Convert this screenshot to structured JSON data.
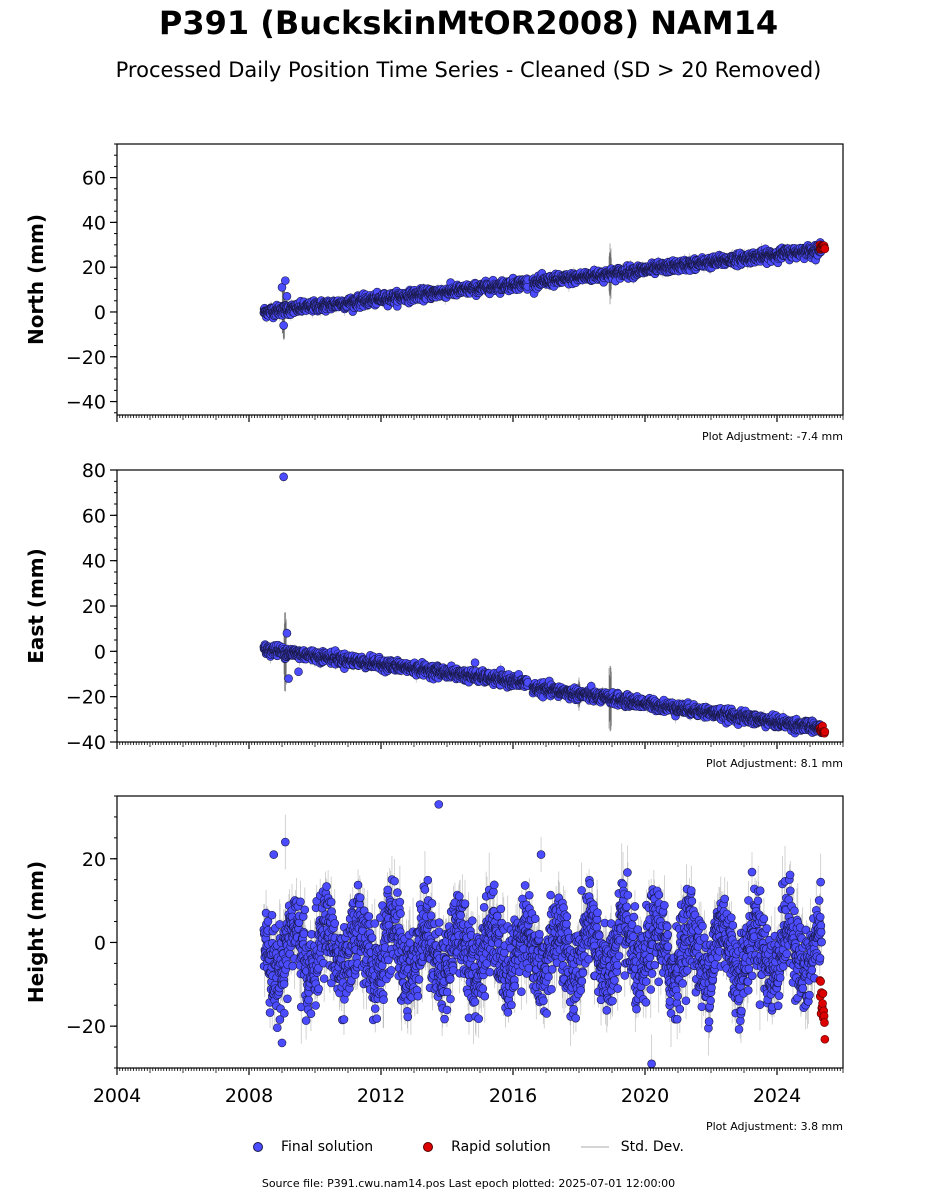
{
  "title": "P391 (BuckskinMtOR2008) NAM14",
  "subtitle": "Processed Daily Position Time Series - Cleaned (SD > 20 Removed)",
  "legend": {
    "final": "Final solution",
    "rapid": "Rapid solution",
    "std": "Std. Dev."
  },
  "footer": "Source file: P391.cwu.nam14.pos  Last epoch plotted: 2025-07-01 12:00:00",
  "colors": {
    "final": "#4b4bff",
    "rapid": "#dd0000",
    "std": "#9a9a9a",
    "marker_edge": "#1a1a4a"
  },
  "chart_data": [
    {
      "type": "scatter",
      "ylabel": "North (mm)",
      "note": "Plot Adjustment: -7.4 mm",
      "xlim": [
        2004,
        2026
      ],
      "ylim": [
        -46,
        75
      ],
      "yticks": [
        -40,
        -20,
        0,
        20,
        40,
        60
      ],
      "ytick_labels": [
        "−40",
        "−20",
        "0",
        "20",
        "40",
        "60"
      ],
      "grid": false,
      "legend": "below",
      "x_tick_labels_visible": false,
      "series": [
        {
          "name": "Final solution",
          "segments": [
            {
              "x": [
                2008.45,
                2016.45
              ],
              "y": [
                0,
                13
              ]
            },
            {
              "x": [
                2016.6,
                2025.35
              ],
              "y": [
                13,
                28
              ]
            }
          ],
          "scatter_sd": 1.2,
          "outliers": [
            [
              2009.0,
              11
            ],
            [
              2009.1,
              14
            ],
            [
              2009.05,
              -6
            ],
            [
              2009.15,
              7
            ]
          ]
        },
        {
          "name": "Rapid solution",
          "x": [
            2025.3,
            2025.45
          ],
          "y": [
            29,
            29
          ]
        }
      ],
      "std_spikes": [
        [
          2009.05,
          16
        ],
        [
          2018.95,
          14
        ]
      ]
    },
    {
      "type": "scatter",
      "ylabel": "East (mm)",
      "note": "Plot Adjustment: 8.1 mm",
      "xlim": [
        2004,
        2026
      ],
      "ylim": [
        -40,
        80
      ],
      "yticks": [
        -40,
        -20,
        0,
        20,
        40,
        60,
        80
      ],
      "ytick_labels": [
        "−40",
        "−20",
        "0",
        "20",
        "40",
        "60",
        "80"
      ],
      "grid": false,
      "legend": "below",
      "x_tick_labels_visible": false,
      "series": [
        {
          "name": "Final solution",
          "segments": [
            {
              "x": [
                2008.45,
                2016.45
              ],
              "y": [
                1,
                -14
              ]
            },
            {
              "x": [
                2016.6,
                2025.35
              ],
              "y": [
                -16,
                -34
              ]
            }
          ],
          "scatter_sd": 1.2,
          "outliers": [
            [
              2009.05,
              77
            ],
            [
              2009.2,
              -12
            ],
            [
              2009.15,
              8
            ],
            [
              2009.5,
              -9
            ],
            [
              2014.85,
              -5
            ]
          ]
        },
        {
          "name": "Rapid solution",
          "x": [
            2025.3,
            2025.45
          ],
          "y": [
            -34,
            -36
          ]
        }
      ],
      "std_spikes": [
        [
          2009.1,
          18
        ],
        [
          2018.95,
          15
        ],
        [
          2018.0,
          8
        ]
      ]
    },
    {
      "type": "scatter",
      "ylabel": "Height (mm)",
      "note": "Plot Adjustment: 3.8 mm",
      "xlim": [
        2004,
        2026
      ],
      "ylim": [
        -30,
        35
      ],
      "yticks": [
        -20,
        0,
        20
      ],
      "ytick_labels": [
        "−20",
        "0",
        "20"
      ],
      "xticks": [
        2004,
        2008,
        2012,
        2016,
        2020,
        2024
      ],
      "xtick_labels": [
        "2004",
        "2008",
        "2012",
        "2016",
        "2020",
        "2024"
      ],
      "grid": false,
      "legend": "below",
      "x_tick_labels_visible": true,
      "series": [
        {
          "name": "Final solution",
          "range_x": [
            2008.45,
            2025.35
          ],
          "mean": -2,
          "seasonal_amplitude": 6,
          "scatter_sd": 5,
          "outliers": [
            [
              2013.75,
              33
            ],
            [
              2009.1,
              24
            ],
            [
              2008.75,
              21
            ],
            [
              2016.85,
              21
            ],
            [
              2009.0,
              -24
            ],
            [
              2020.2,
              -29
            ]
          ]
        },
        {
          "name": "Rapid solution",
          "x": [
            2025.3,
            2025.45
          ],
          "y": [
            -11,
            -21
          ]
        }
      ],
      "std_spikes": []
    }
  ]
}
